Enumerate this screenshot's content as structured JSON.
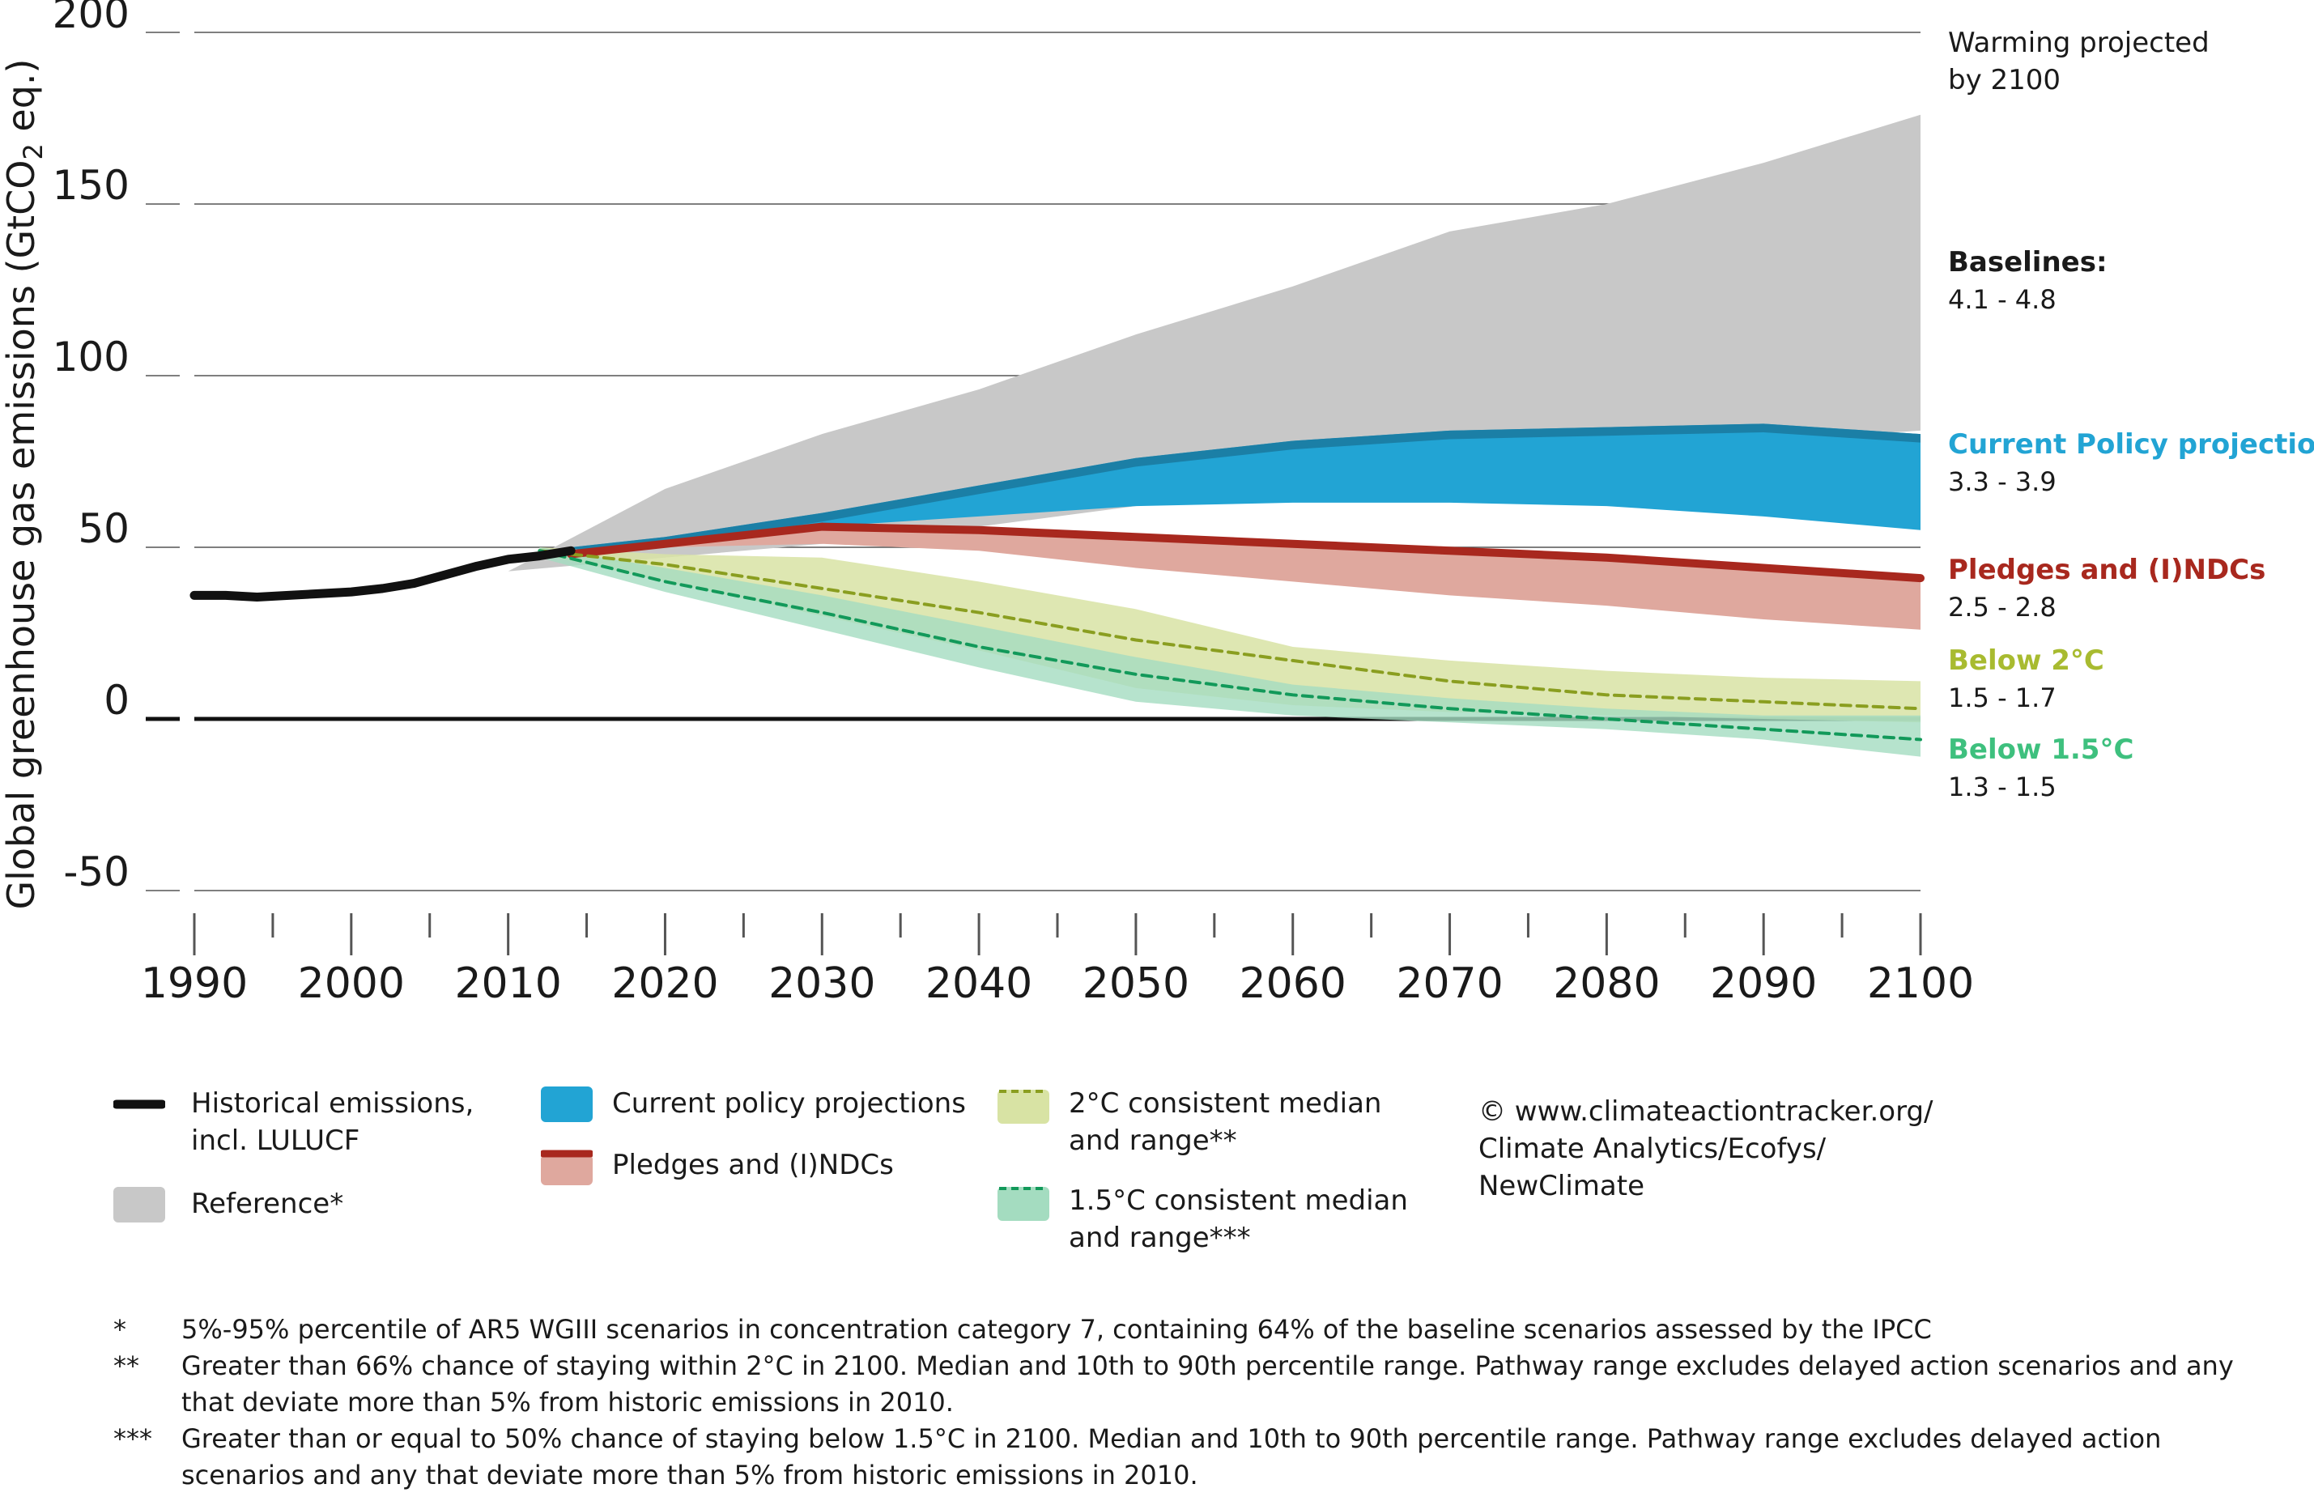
{
  "colors": {
    "reference": "#c8c8c8",
    "current_policy": "#22a4d4",
    "current_policy_dark": "#1b7fa6",
    "pledges_band": "#dfa89e",
    "pledges_line": "#a8281e",
    "below2_band": "#d8e3a4",
    "below2_line": "#8a9e20",
    "below15_band": "#a4dcc0",
    "below15_line": "#12995a",
    "historical": "#111111",
    "title_2c": "#a8bb30",
    "title_15c": "#3ec07e"
  },
  "chart_data": {
    "type": "area",
    "ylabel": "Global greenhouse gas emissions (GtCO2 eq.)",
    "ylim": [
      -50,
      200
    ],
    "xlim": [
      1990,
      2100
    ],
    "yticks": [
      "200",
      "150",
      "100",
      "50",
      "0",
      "-50"
    ],
    "xticks": [
      "1990",
      "2000",
      "2010",
      "2020",
      "2030",
      "2040",
      "2050",
      "2060",
      "2070",
      "2080",
      "2090",
      "2100"
    ],
    "series": [
      {
        "name": "Reference*",
        "kind": "band",
        "x": [
          2010,
          2020,
          2030,
          2040,
          2050,
          2060,
          2070,
          2080,
          2090,
          2100
        ],
        "low": [
          43,
          47,
          51,
          56,
          62,
          67,
          73,
          77,
          81,
          84
        ],
        "high": [
          43,
          67,
          83,
          96,
          112,
          126,
          142,
          150,
          162,
          176
        ]
      },
      {
        "name": "Current policy projections",
        "kind": "band",
        "x": [
          2014,
          2020,
          2030,
          2040,
          2050,
          2060,
          2070,
          2080,
          2090,
          2100
        ],
        "low": [
          49,
          52,
          56,
          59,
          62,
          63,
          63,
          62,
          59,
          55
        ],
        "high": [
          50,
          53,
          60,
          68,
          76,
          81,
          84,
          85,
          86,
          83
        ]
      },
      {
        "name": "Pledges and (I)NDCs",
        "kind": "band",
        "x": [
          2014,
          2020,
          2030,
          2040,
          2050,
          2060,
          2070,
          2080,
          2090,
          2100
        ],
        "low": [
          49,
          50,
          51,
          49,
          44,
          40,
          36,
          33,
          29,
          26
        ],
        "high": [
          49,
          52,
          56,
          55,
          53,
          51,
          49,
          47,
          44,
          41
        ],
        "median": [
          48,
          51,
          56,
          55,
          53,
          51,
          49,
          47,
          44,
          41
        ]
      },
      {
        "name": "2°C consistent median and range**",
        "kind": "band",
        "x": [
          2012,
          2020,
          2030,
          2040,
          2050,
          2060,
          2070,
          2080,
          2090,
          2100
        ],
        "low": [
          48,
          40,
          30,
          20,
          9,
          4,
          2,
          1,
          0,
          -1
        ],
        "high": [
          50,
          48,
          47,
          40,
          32,
          21,
          17,
          14,
          12,
          11
        ],
        "median": [
          49,
          45,
          38,
          31,
          23,
          17,
          11,
          7,
          5,
          3
        ]
      },
      {
        "name": "1.5°C consistent median and range***",
        "kind": "band",
        "x": [
          2012,
          2020,
          2030,
          2040,
          2050,
          2060,
          2070,
          2080,
          2090,
          2100
        ],
        "low": [
          47,
          37,
          26,
          15,
          5,
          1,
          -1,
          -3,
          -6,
          -11
        ],
        "high": [
          50,
          44,
          36,
          27,
          18,
          10,
          6,
          3,
          1,
          1
        ],
        "median": [
          49,
          40,
          31,
          21,
          13,
          7,
          3,
          0,
          -3,
          -6
        ]
      },
      {
        "name": "Historical emissions, incl. LULUCF",
        "kind": "line",
        "x": [
          1990,
          1992,
          1994,
          1996,
          1998,
          2000,
          2002,
          2004,
          2006,
          2008,
          2010,
          2012,
          2014
        ],
        "values": [
          36,
          36,
          35.5,
          36,
          36.5,
          37,
          38,
          39.5,
          42,
          44.5,
          46.5,
          47.5,
          49
        ]
      }
    ]
  },
  "right_labels": {
    "header": [
      "Warming projected",
      "by 2100"
    ],
    "items": [
      {
        "title": "Baselines:",
        "value": "4.1 - 4.8",
        "color": "#1a1a1a"
      },
      {
        "title": "Current Policy projections",
        "value": "3.3 - 3.9",
        "color": "#22a4d4"
      },
      {
        "title": "Pledges and (I)NDCs",
        "value": "2.5 - 2.8",
        "color": "#a8281e"
      },
      {
        "title": "Below 2°C",
        "value": "1.5 - 1.7",
        "color": "#a8bb30"
      },
      {
        "title": "Below 1.5°C",
        "value": "1.3 - 1.5",
        "color": "#3ec07e"
      }
    ]
  },
  "legend": {
    "historical": "Historical emissions,\nincl. LULUCF",
    "reference": "Reference*",
    "current_policy": "Current policy projections",
    "pledges": "Pledges and (I)NDCs",
    "two_c": "2°C consistent median\nand range**",
    "one_five_c": "1.5°C consistent median\nand range***",
    "credit": "© www.climateactiontracker.org/\nClimate Analytics/Ecofys/\nNewClimate"
  },
  "footnotes": [
    {
      "mark": "*",
      "text": "5%-95% percentile of AR5 WGIII scenarios in concentration category 7, containing 64% of the baseline scenarios assessed by the IPCC"
    },
    {
      "mark": "**",
      "text": "Greater than 66% chance of staying within 2°C in 2100. Median and 10th to 90th percentile range. Pathway range excludes delayed action scenarios and any that deviate more than 5% from historic emissions in 2010."
    },
    {
      "mark": "***",
      "text": "Greater than or equal to 50% chance of staying below 1.5°C in 2100. Median and 10th to 90th percentile range. Pathway range excludes delayed action scenarios and any that deviate more than 5% from historic emissions in 2010."
    }
  ]
}
